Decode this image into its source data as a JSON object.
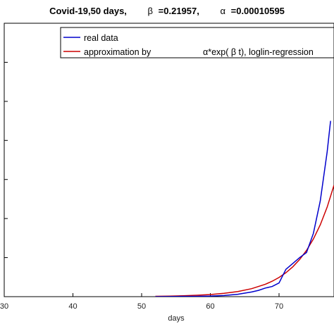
{
  "chart_data": {
    "type": "line",
    "title": {
      "prefix": "Covid-19,50 days,",
      "beta_symbol": "β",
      "beta_value": "=0.21957,",
      "alpha_symbol": "α",
      "alpha_value": "=0.00010595"
    },
    "xlabel": "days",
    "ylabel": "",
    "xlim": [
      30,
      78
    ],
    "ylim": [
      0,
      7000
    ],
    "x_ticks": [
      30,
      40,
      50,
      60,
      70
    ],
    "x_tick_labels": [
      "30",
      "40",
      "50",
      "60",
      "70"
    ],
    "y_ticks": [
      0,
      1000,
      2000,
      3000,
      4000,
      5000,
      6000,
      7000
    ],
    "grid": false,
    "legend_placement": "top-right",
    "series": [
      {
        "name": "real data",
        "color": "#0000cc",
        "x": [
          52,
          55,
          58,
          60,
          62,
          64,
          66,
          67,
          68,
          69,
          70,
          71,
          72,
          73,
          74,
          75,
          76,
          77,
          77.5
        ],
        "y": [
          0,
          5,
          10,
          15,
          30,
          60,
          120,
          160,
          220,
          260,
          350,
          700,
          850,
          1000,
          1130,
          1620,
          2450,
          3700,
          4500
        ]
      },
      {
        "name": "approximation by",
        "name_formula": "α*exp( β t), loglin-regression",
        "color": "#cc0000",
        "x": [
          52,
          54,
          56,
          58,
          60,
          62,
          64,
          66,
          68,
          69,
          70,
          71,
          72,
          73,
          74,
          75,
          76,
          77,
          78
        ],
        "y": [
          9.4,
          14.6,
          22.7,
          35.2,
          54.6,
          84.8,
          131.6,
          204.2,
          316.9,
          394.8,
          491.8,
          612.6,
          763.2,
          950.8,
          1184.5,
          1475.7,
          1838.4,
          2290.3,
          2853.3
        ]
      }
    ]
  }
}
